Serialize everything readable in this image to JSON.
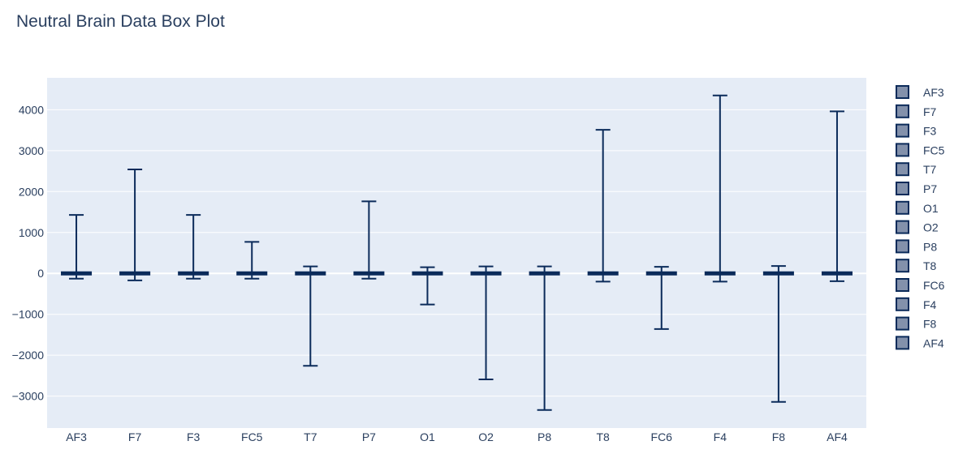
{
  "chart_data": {
    "type": "box",
    "title": "Neutral Brain Data Box Plot",
    "xlabel": "",
    "ylabel": "",
    "categories": [
      "AF3",
      "F7",
      "F3",
      "FC5",
      "T7",
      "P7",
      "O1",
      "O2",
      "P8",
      "T8",
      "FC6",
      "F4",
      "F8",
      "AF4"
    ],
    "series": [
      {
        "name": "AF3",
        "min": -130,
        "q1": -5,
        "median": 0,
        "q3": 5,
        "max": 1430
      },
      {
        "name": "F7",
        "min": -170,
        "q1": -5,
        "median": 0,
        "q3": 5,
        "max": 2540
      },
      {
        "name": "F3",
        "min": -130,
        "q1": -5,
        "median": 0,
        "q3": 5,
        "max": 1430
      },
      {
        "name": "FC5",
        "min": -130,
        "q1": -5,
        "median": 0,
        "q3": 5,
        "max": 770
      },
      {
        "name": "T7",
        "min": -2260,
        "q1": -5,
        "median": 0,
        "q3": 5,
        "max": 170
      },
      {
        "name": "P7",
        "min": -130,
        "q1": -5,
        "median": 0,
        "q3": 5,
        "max": 1760
      },
      {
        "name": "O1",
        "min": -760,
        "q1": -5,
        "median": 0,
        "q3": 5,
        "max": 150
      },
      {
        "name": "O2",
        "min": -2590,
        "q1": -5,
        "median": 0,
        "q3": 5,
        "max": 170
      },
      {
        "name": "P8",
        "min": -3340,
        "q1": -5,
        "median": 0,
        "q3": 5,
        "max": 170
      },
      {
        "name": "T8",
        "min": -200,
        "q1": -5,
        "median": 0,
        "q3": 5,
        "max": 3510
      },
      {
        "name": "FC6",
        "min": -1360,
        "q1": -5,
        "median": 0,
        "q3": 5,
        "max": 160
      },
      {
        "name": "F4",
        "min": -200,
        "q1": -5,
        "median": 0,
        "q3": 5,
        "max": 4350
      },
      {
        "name": "F8",
        "min": -3140,
        "q1": -5,
        "median": 0,
        "q3": 5,
        "max": 180
      },
      {
        "name": "AF4",
        "min": -190,
        "q1": -5,
        "median": 0,
        "q3": 5,
        "max": 3960
      }
    ],
    "y_ticks": [
      -3000,
      -2000,
      -1000,
      0,
      1000,
      2000,
      3000,
      4000
    ],
    "y_tick_labels": [
      "−3000",
      "−2000",
      "−1000",
      "0",
      "1000",
      "2000",
      "3000",
      "4000"
    ],
    "ylim": [
      -3780,
      4780
    ],
    "grid": true,
    "legend_position": "right",
    "colors": {
      "plot_bg": "#e5ecf6",
      "grid": "#ffffff",
      "line": "#0b2b5a",
      "legend_fill": "#8391ab",
      "text": "#2a3f5f"
    }
  }
}
